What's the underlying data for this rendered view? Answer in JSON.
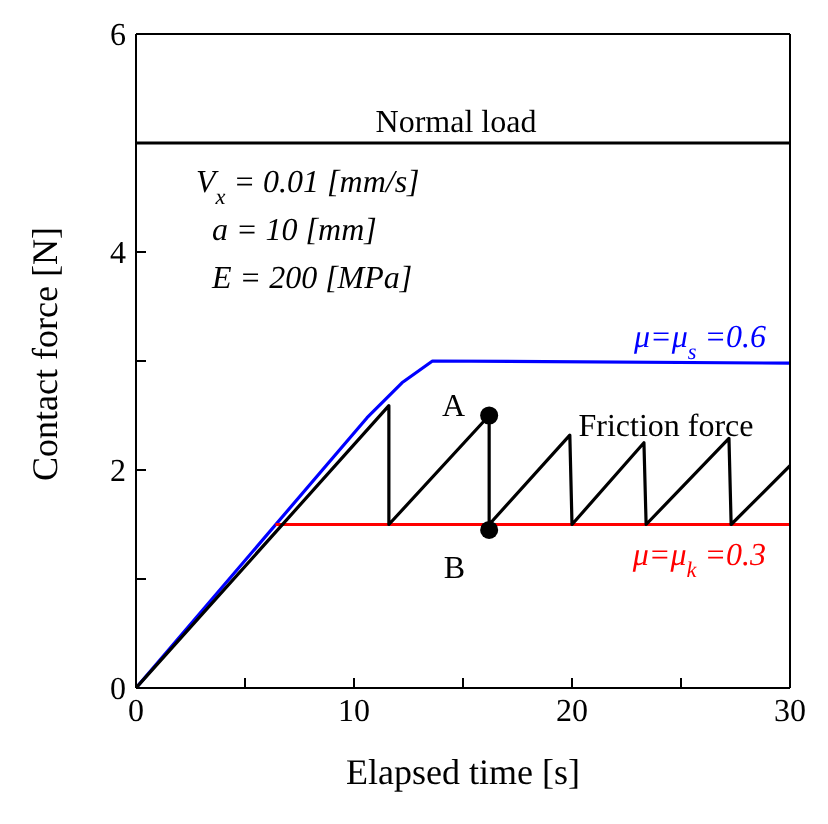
{
  "chart_data": {
    "type": "line",
    "xlabel": "Elapsed time [s]",
    "ylabel": "Contact force [N]",
    "xlim": [
      0,
      30
    ],
    "xticks": [
      0,
      {
        "value": 5,
        "label": null
      },
      10,
      {
        "value": 15,
        "label": null
      },
      20,
      {
        "value": 25,
        "label": null
      },
      30
    ],
    "ylim": [
      0,
      6
    ],
    "yticks": [
      0,
      {
        "value": 1,
        "label": null
      },
      2,
      {
        "value": 3,
        "label": null
      },
      4,
      {
        "value": 5,
        "label": null
      },
      6
    ],
    "legend": false,
    "marker": "none",
    "line_style": "solid",
    "series": [
      {
        "color": "#000000",
        "x": [
          0,
          30
        ],
        "values": [
          5,
          5
        ]
      },
      {
        "name": "μ=μ$_{s}$=0.6",
        "color": "#0000ff",
        "x": [
          0,
          10.6,
          12.2,
          13.6,
          30
        ],
        "values": [
          0,
          2.48,
          2.8,
          3.0,
          2.98
        ]
      },
      {
        "name": "μ=μ$_{k}$=0.3",
        "color": "#ff0000",
        "x": [
          6.4,
          30
        ],
        "values": [
          1.5,
          1.5
        ]
      },
      {
        "color": "#000000",
        "x": [
          0,
          11.6,
          11.6,
          16.2,
          16.2,
          19.9,
          20.0,
          23.3,
          23.4,
          27.2,
          27.3,
          30
        ],
        "values": [
          0,
          2.59,
          1.5,
          2.5,
          1.5,
          2.32,
          1.5,
          2.25,
          1.5,
          2.29,
          1.5,
          2.04
        ]
      },
      {
        "type": "scatter",
        "marker": "circle",
        "color": "#000000",
        "x": [
          16.2,
          16.2
        ],
        "values": [
          2.5,
          1.45
        ]
      }
    ],
    "annotations": [
      "Normal load",
      "Friction force",
      {
        "text": "A",
        "x": 16.2,
        "y": 2.5
      },
      {
        "text": "B",
        "x": 16.2,
        "y": 1.45
      },
      "V$_{x}$ = 0.01 [mm/s]",
      "a = 10 [mm]",
      "E = 200 [MPa]"
    ]
  }
}
